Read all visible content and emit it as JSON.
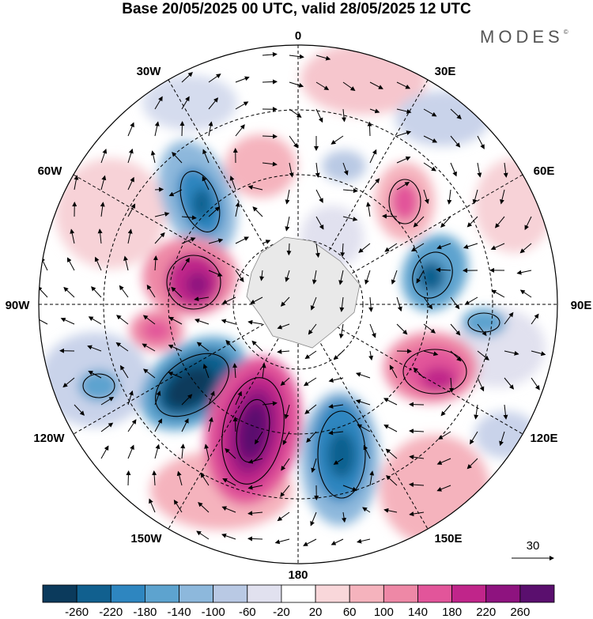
{
  "title": "Base 20/05/2025 00 UTC, valid 28/05/2025 12 UTC",
  "brand": "MODES",
  "brand_mark": "©",
  "map": {
    "projection": "polar-stereographic",
    "hemisphere": "south",
    "longitude_labels": [
      "0",
      "30E",
      "60E",
      "90E",
      "120E",
      "150E",
      "180",
      "150W",
      "120W",
      "90W",
      "60W",
      "30W"
    ],
    "graticule": "dashed",
    "vector_field": "wind arrows",
    "reference_vector_label": "30"
  },
  "colorbar": {
    "ticks": [
      "-260",
      "-220",
      "-180",
      "-140",
      "-100",
      "-60",
      "-20",
      "20",
      "60",
      "100",
      "140",
      "180",
      "220",
      "260"
    ],
    "colors": [
      "#0b3a5c",
      "#11608f",
      "#2e86c0",
      "#5da3cf",
      "#8db8dc",
      "#b9c9e4",
      "#e1e1ef",
      "#ffffff",
      "#f9d7da",
      "#f5b3bd",
      "#ee88a6",
      "#e2559a",
      "#c0258a",
      "#8e137f",
      "#5a0f6e"
    ]
  }
}
